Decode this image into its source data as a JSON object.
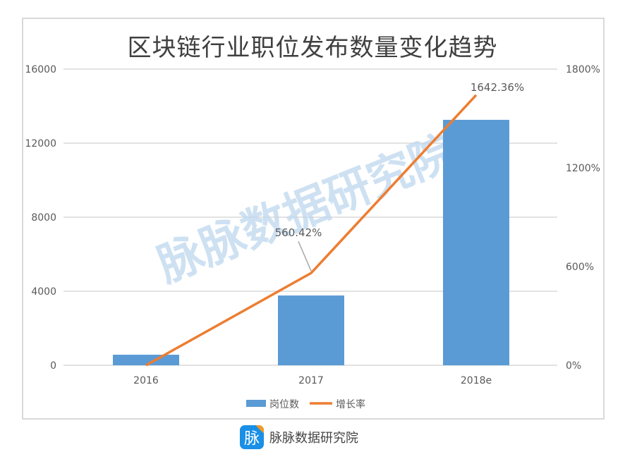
{
  "title": "区块链行业职位发布数量变化趋势",
  "watermark": "脉脉数据研究院",
  "footer": {
    "logo_char": "脉",
    "text": "脉脉数据研究院"
  },
  "colors": {
    "bar": "#5b9bd5",
    "line": "#ed7d31",
    "grid": "#d9d9d9",
    "text": "#595959",
    "watermark": "#bdd7ee"
  },
  "chart_data": {
    "type": "bar+line",
    "title": "区块链行业职位发布数量变化趋势",
    "categories": [
      "2016",
      "2017",
      "2018e"
    ],
    "series": [
      {
        "name": "岗位数",
        "type": "bar",
        "axis": "left",
        "values": [
          570,
          3770,
          13260
        ]
      },
      {
        "name": "增长率",
        "type": "line",
        "axis": "right",
        "values": [
          0,
          560.42,
          1642.36
        ],
        "labels": [
          "",
          "560.42%",
          "1642.36%"
        ]
      }
    ],
    "left_axis": {
      "ylim": [
        0,
        16000
      ],
      "ticks": [
        "0",
        "4000",
        "8000",
        "12000",
        "16000"
      ]
    },
    "right_axis": {
      "ylim": [
        0,
        1800
      ],
      "ticks": [
        "0%",
        "600%",
        "1200%",
        "1800%"
      ]
    },
    "legend": {
      "position": "bottom",
      "entries": [
        "岗位数",
        "增长率"
      ]
    },
    "grid": true
  }
}
